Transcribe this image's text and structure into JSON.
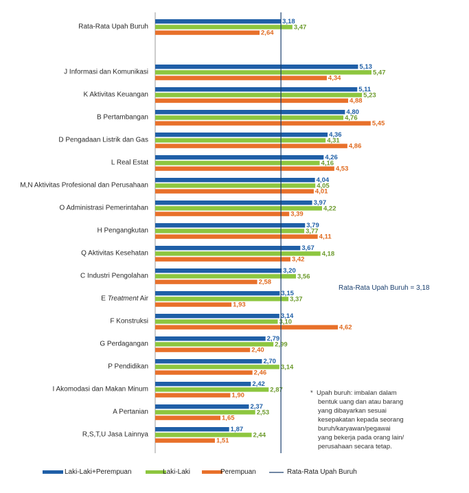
{
  "chart_data": {
    "type": "bar",
    "orientation": "horizontal",
    "categories": [
      {
        "pre": "Rata-Rata Upah Buruh",
        "it": "",
        "post": ""
      },
      {
        "pre": "J Informasi dan Komunikasi",
        "it": "",
        "post": ""
      },
      {
        "pre": "K Aktivitas Keuangan",
        "it": "",
        "post": ""
      },
      {
        "pre": "B Pertambangan",
        "it": "",
        "post": ""
      },
      {
        "pre": "D Pengadaan Listrik dan Gas",
        "it": "",
        "post": ""
      },
      {
        "pre": "L Real Estat",
        "it": "",
        "post": ""
      },
      {
        "pre": "M,N Aktivitas Profesional dan Perusahaan",
        "it": "",
        "post": ""
      },
      {
        "pre": "O Administrasi Pemerintahan",
        "it": "",
        "post": ""
      },
      {
        "pre": "H Pengangkutan",
        "it": "",
        "post": ""
      },
      {
        "pre": "Q Aktivitas Kesehatan",
        "it": "",
        "post": ""
      },
      {
        "pre": "C Industri Pengolahan",
        "it": "",
        "post": ""
      },
      {
        "pre": "E ",
        "it": "Treatment",
        "post": " Air"
      },
      {
        "pre": "F Konstruksi",
        "it": "",
        "post": ""
      },
      {
        "pre": "G Perdagangan",
        "it": "",
        "post": ""
      },
      {
        "pre": "P Pendidikan",
        "it": "",
        "post": ""
      },
      {
        "pre": "I Akomodasi dan Makan Minum",
        "it": "",
        "post": ""
      },
      {
        "pre": "A Pertanian",
        "it": "",
        "post": ""
      },
      {
        "pre": "R,S,T,U Jasa Lainnya",
        "it": "",
        "post": ""
      }
    ],
    "series": [
      {
        "name": "Laki-Laki+Perempuan",
        "color": "#1f5fa7",
        "label_color": "#1f5fa7",
        "values": [
          3.18,
          5.13,
          5.11,
          4.8,
          4.36,
          4.26,
          4.04,
          3.97,
          3.79,
          3.67,
          3.2,
          3.15,
          3.14,
          2.79,
          2.7,
          2.42,
          2.37,
          1.87
        ],
        "labels": [
          "3,18",
          "5,13",
          "5,11",
          "4,80",
          "4,36",
          "4,26",
          "4,04",
          "3,97",
          "3,79",
          "3,67",
          "3,20",
          "3,15",
          "3,14",
          "2,79",
          "2,70",
          "2,42",
          "2,37",
          "1,87"
        ]
      },
      {
        "name": "Laki-Laki",
        "color": "#8dc63f",
        "label_color": "#6d9b2e",
        "values": [
          3.47,
          5.47,
          5.23,
          4.76,
          4.31,
          4.16,
          4.05,
          4.22,
          3.77,
          4.18,
          3.56,
          3.37,
          3.1,
          2.99,
          3.14,
          2.87,
          2.53,
          2.44
        ],
        "labels": [
          "3,47",
          "5,47",
          "5,23",
          "4,76",
          "4,31",
          "4,16",
          "4,05",
          "4,22",
          "3,77",
          "4,18",
          "3,56",
          "3,37",
          "3,10",
          "2,99",
          "3,14",
          "2,87",
          "2,53",
          "2,44"
        ]
      },
      {
        "name": "Perempuan",
        "color": "#e8702a",
        "label_color": "#e06a1f",
        "values": [
          2.64,
          4.34,
          4.88,
          5.45,
          4.86,
          4.53,
          4.01,
          3.39,
          4.11,
          3.42,
          2.58,
          1.93,
          4.62,
          2.4,
          2.46,
          1.9,
          1.65,
          1.51
        ],
        "labels": [
          "2,64",
          "4,34",
          "4,88",
          "5,45",
          "4,86",
          "4,53",
          "4,01",
          "3,39",
          "4,11",
          "3,42",
          "2,58",
          "1,93",
          "4,62",
          "2,40",
          "2,46",
          "1,90",
          "1,65",
          "1,51"
        ]
      }
    ],
    "reference_line": {
      "name": "Rata-Rata Upah Buruh",
      "value": 3.18,
      "label": "Rata-Rata Upah Buruh = 3,18",
      "color": "#1a3f6e"
    },
    "legend_position": "bottom",
    "xlim": [
      0,
      5.8
    ]
  },
  "footnote": {
    "star": "*",
    "lines": [
      "Upah buruh: imbalan dalam",
      "bentuk uang dan atau barang",
      "yang dibayarkan sesuai",
      "kesepakatan  kepada seorang",
      "buruh/karyawan/pegawai",
      "yang bekerja pada orang lain/",
      "perusahaan secara tetap."
    ]
  }
}
